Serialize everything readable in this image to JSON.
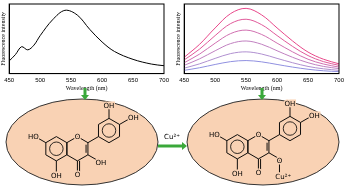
{
  "chart_data": [
    {
      "type": "line",
      "x_label": "Wavelength (nm)",
      "y_label": "Fluorescence intensity",
      "x": [
        450,
        460,
        470,
        480,
        490,
        500,
        520,
        540,
        560,
        580,
        600,
        620,
        650,
        680,
        700
      ],
      "values": [
        40,
        60,
        85,
        75,
        90,
        120,
        170,
        200,
        185,
        140,
        100,
        70,
        45,
        30,
        25
      ],
      "color": "#000000",
      "marker": "none",
      "xlim": [
        450,
        700
      ],
      "xticks": [
        450,
        500,
        550,
        600,
        650,
        700
      ],
      "ylim": [
        0,
        220
      ],
      "tick_labels": "x",
      "grid": false
    },
    {
      "type": "line",
      "x_label": "Wavelength (nm)",
      "y_label": "Fluorescence intensity",
      "x": [
        450,
        475,
        500,
        525,
        550,
        575,
        600,
        625,
        650,
        675,
        700
      ],
      "series": [
        {
          "color": "#e8488a",
          "values": [
            75,
            135,
            210,
            276,
            300,
            270,
            210,
            150,
            99,
            66,
            45
          ]
        },
        {
          "color": "#e05a9a",
          "values": [
            63,
            113,
            175,
            230,
            250,
            225,
            175,
            125,
            83,
            55,
            38
          ]
        },
        {
          "color": "#d070b0",
          "values": [
            50,
            90,
            140,
            184,
            200,
            180,
            140,
            100,
            66,
            44,
            30
          ]
        },
        {
          "color": "#c080c0",
          "values": [
            38,
            68,
            105,
            138,
            150,
            135,
            105,
            75,
            50,
            33,
            23
          ]
        },
        {
          "color": "#b090d0",
          "values": [
            25,
            45,
            70,
            92,
            100,
            90,
            70,
            50,
            33,
            22,
            15
          ]
        },
        {
          "color": "#9090e0",
          "values": [
            15,
            27,
            42,
            55,
            60,
            54,
            42,
            30,
            20,
            13,
            9
          ]
        }
      ],
      "marker": "none",
      "xlim": [
        450,
        700
      ],
      "xticks": [
        450,
        500,
        550,
        600,
        650,
        700
      ],
      "ylim": [
        0,
        320
      ],
      "tick_labels": "x",
      "grid": false
    }
  ],
  "diagram": {
    "reagent": "Cu²⁺",
    "free_ligand": {
      "ho7": "HO",
      "oh5": "OH",
      "o1": "O",
      "o4": "O",
      "oh3": "OH",
      "oh3p": "OH",
      "oh4p": "OH"
    },
    "complex": {
      "ho7": "HO",
      "oh5": "OH",
      "o1": "O",
      "o4": "O",
      "o3": "O",
      "oh3p": "OH",
      "oh4p": "OH",
      "metal": "Cu²⁺"
    }
  }
}
